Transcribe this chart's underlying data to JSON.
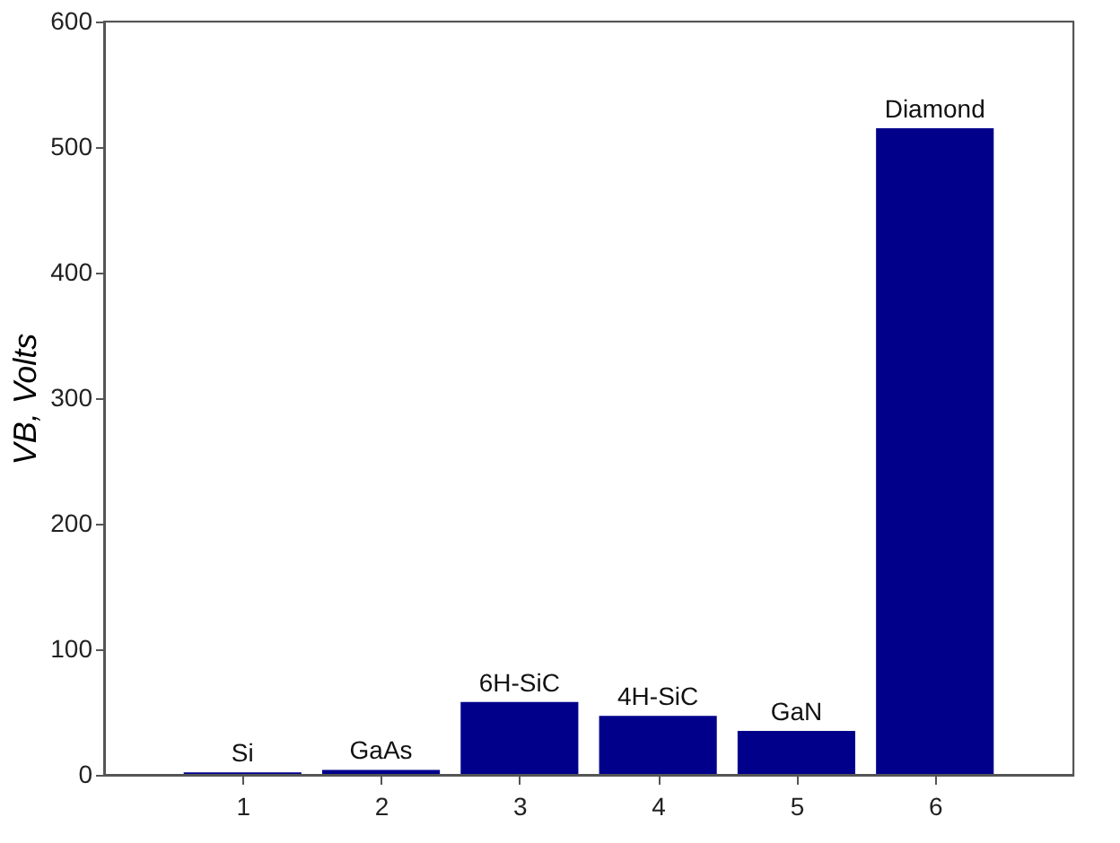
{
  "chart_data": {
    "type": "bar",
    "ylabel": "VB, Volts",
    "x": [
      1,
      2,
      3,
      4,
      5,
      6
    ],
    "series": [
      {
        "color": "#00008b",
        "values": [
          2,
          4,
          58,
          47,
          35,
          515
        ]
      }
    ],
    "xlim": [
      0,
      7
    ],
    "xticks": [
      1,
      2,
      3,
      4,
      5,
      6
    ],
    "ylim": [
      0,
      600
    ],
    "yticks": [
      0,
      100,
      200,
      300,
      400,
      500,
      600
    ],
    "grid": false,
    "annotations": [
      {
        "text": "Si",
        "x": 1,
        "y": 2
      },
      {
        "text": "GaAs",
        "x": 2,
        "y": 4
      },
      {
        "text": "6H-SiC",
        "x": 3,
        "y": 58
      },
      {
        "text": "4H-SiC",
        "x": 4,
        "y": 47
      },
      {
        "text": "GaN",
        "x": 5,
        "y": 35
      },
      {
        "text": "Diamond",
        "x": 6,
        "y": 515
      }
    ]
  }
}
